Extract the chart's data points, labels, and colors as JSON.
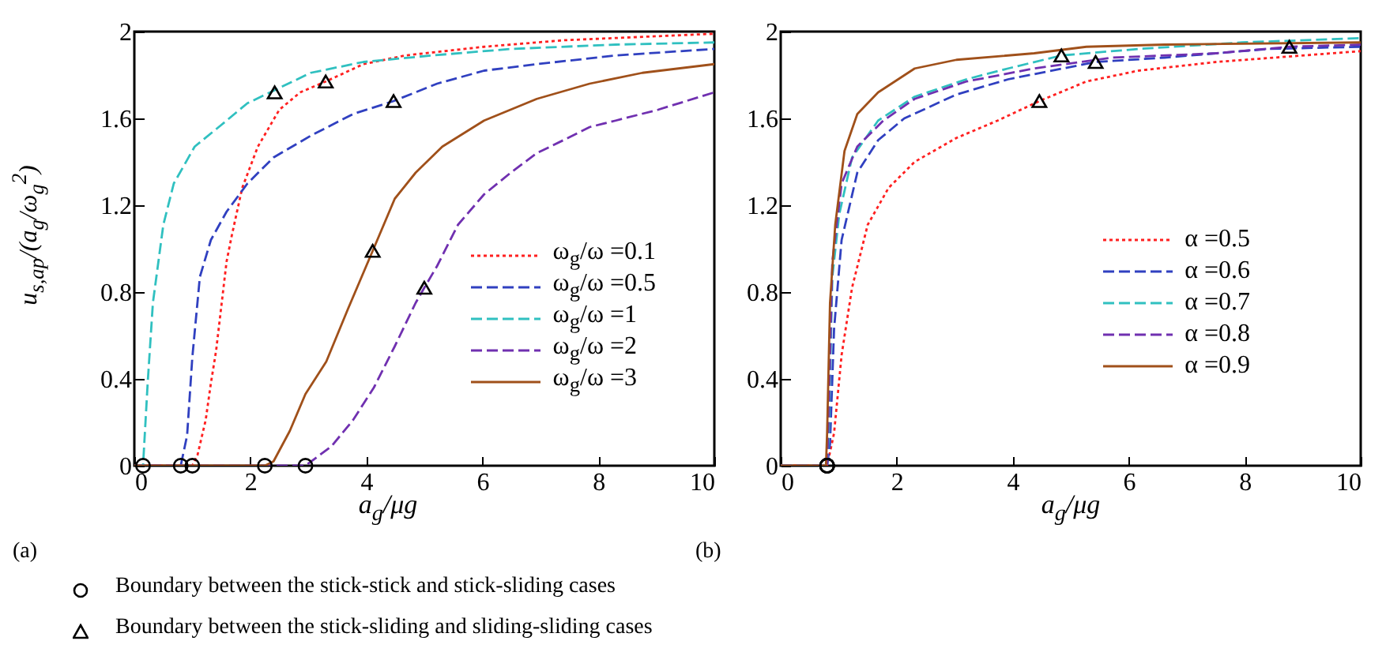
{
  "chart_data": [
    {
      "type": "line",
      "xlabel": "a$_{g}$/μg",
      "ylabel": "u$_{s,ap}$/(a$_{g}$/ω$_{g}$$^{2}$)",
      "xlim": [
        0,
        10
      ],
      "xticks": [
        0,
        2,
        4,
        6,
        8,
        10
      ],
      "ylim": [
        0,
        2
      ],
      "yticks": [
        0,
        0.4,
        0.8,
        1.2,
        1.6,
        2
      ],
      "legend": "bottom right",
      "annotations": [
        "(a)",
        "Boundary between the stick-stick and stick-sliding cases",
        "Boundary between the stick-sliding and sliding-sliding cases"
      ],
      "series": [
        {
          "name": "ω$_{g}$/ω =0.1",
          "color": "#ff2020",
          "line_style": "dotted",
          "x": [
            0,
            1.0,
            1.09,
            1.23,
            1.32,
            1.41,
            1.59,
            1.68,
            1.86,
            2.13,
            2.5,
            2.86,
            3.3,
            3.95,
            4.67,
            6.03,
            7.4,
            10
          ],
          "values": [
            0,
            0,
            0.05,
            0.21,
            0.38,
            0.53,
            0.94,
            1.06,
            1.28,
            1.47,
            1.64,
            1.72,
            1.77,
            1.85,
            1.89,
            1.93,
            1.96,
            1.99
          ]
        },
        {
          "name": "ω$_{g}$/ω =0.5",
          "color": "#3040c0",
          "line_style": "dashed",
          "x": [
            0,
            0.8,
            0.91,
            1.0,
            1.13,
            1.32,
            1.59,
            1.95,
            2.4,
            3.04,
            3.77,
            4.47,
            5.22,
            6.03,
            6.94,
            8.3,
            10
          ],
          "values": [
            0,
            0,
            0.14,
            0.5,
            0.87,
            1.04,
            1.17,
            1.3,
            1.42,
            1.52,
            1.62,
            1.68,
            1.76,
            1.82,
            1.85,
            1.89,
            1.92
          ]
        },
        {
          "name": "ω$_{g}$/ω =1",
          "color": "#30c0c0",
          "line_style": "dashed",
          "x": [
            0,
            0.15,
            0.23,
            0.32,
            0.5,
            0.68,
            1.04,
            1.5,
            1.95,
            2.42,
            3.04,
            3.95,
            5.13,
            6.49,
            8.3,
            10
          ],
          "values": [
            0,
            0,
            0.38,
            0.75,
            1.11,
            1.3,
            1.47,
            1.57,
            1.67,
            1.73,
            1.81,
            1.86,
            1.89,
            1.92,
            1.94,
            1.95
          ]
        },
        {
          "name": "ω$_{g}$/ω =2",
          "color": "#7030b0",
          "line_style": "dashed",
          "x": [
            0,
            2.95,
            3.4,
            3.77,
            4.13,
            4.49,
            4.85,
            5.0,
            5.22,
            5.58,
            6.03,
            6.49,
            6.94,
            7.4,
            7.85,
            8.3,
            9.03,
            10
          ],
          "values": [
            0,
            0,
            0.09,
            0.21,
            0.36,
            0.55,
            0.75,
            0.82,
            0.92,
            1.11,
            1.25,
            1.35,
            1.44,
            1.5,
            1.56,
            1.59,
            1.64,
            1.72
          ]
        },
        {
          "name": "ω$_{g}$/ω =3",
          "color": "#a0501a",
          "line_style": "solid",
          "x": [
            0,
            2.25,
            2.4,
            2.68,
            2.95,
            3.31,
            3.68,
            4.11,
            4.49,
            4.85,
            5.31,
            6.03,
            6.94,
            7.85,
            8.76,
            10
          ],
          "values": [
            0,
            0,
            0.02,
            0.16,
            0.33,
            0.48,
            0.72,
            0.99,
            1.23,
            1.35,
            1.47,
            1.59,
            1.69,
            1.76,
            1.81,
            1.85
          ]
        },
        {
          "type": "scatter",
          "marker": "circle",
          "color": "#000000",
          "x": [
            0.15,
            0.8,
            1.0,
            2.25,
            2.95
          ],
          "values": [
            0,
            0,
            0,
            0,
            0
          ]
        },
        {
          "type": "scatter",
          "marker": "triangle",
          "color": "#000000",
          "x": [
            2.42,
            3.3,
            4.47,
            4.11,
            5.0
          ],
          "values": [
            1.72,
            1.77,
            1.68,
            0.99,
            0.82
          ]
        }
      ]
    },
    {
      "type": "line",
      "xlabel": "a$_{g}$/μg",
      "xlim": [
        0,
        10
      ],
      "xticks": [
        0,
        2,
        4,
        6,
        8,
        10
      ],
      "ylim": [
        0,
        2
      ],
      "yticks": [
        0,
        0.4,
        0.8,
        1.2,
        1.6,
        2
      ],
      "legend": "right",
      "annotations": [
        "(b)"
      ],
      "series": [
        {
          "name": "α =0.5",
          "color": "#ff2020",
          "line_style": "dotted",
          "x": [
            0,
            0.8,
            0.92,
            1.05,
            1.23,
            1.5,
            1.86,
            2.31,
            3.03,
            3.74,
            4.46,
            5.27,
            6.17,
            7.51,
            10
          ],
          "values": [
            0,
            0,
            0.15,
            0.51,
            0.82,
            1.11,
            1.28,
            1.4,
            1.51,
            1.59,
            1.68,
            1.77,
            1.82,
            1.86,
            1.91
          ]
        },
        {
          "name": "α =0.6",
          "color": "#3040c0",
          "line_style": "dashed",
          "x": [
            0,
            0.8,
            0.85,
            0.92,
            1.05,
            1.32,
            1.68,
            2.13,
            3.03,
            3.92,
            5.43,
            6.62,
            8.41,
            10
          ],
          "values": [
            0,
            0,
            0.1,
            0.63,
            1.04,
            1.35,
            1.5,
            1.6,
            1.71,
            1.78,
            1.86,
            1.88,
            1.92,
            1.93
          ]
        },
        {
          "name": "α =0.7",
          "color": "#30c0c0",
          "line_style": "dashed",
          "x": [
            0,
            0.8,
            0.83,
            0.89,
            1.01,
            1.23,
            1.68,
            2.31,
            3.2,
            3.92,
            4.84,
            6.17,
            7.96,
            10
          ],
          "values": [
            0,
            0,
            0.15,
            0.87,
            1.16,
            1.42,
            1.59,
            1.7,
            1.78,
            1.83,
            1.89,
            1.92,
            1.95,
            1.97
          ]
        },
        {
          "name": "α =0.8",
          "color": "#7030b0",
          "line_style": "dashed",
          "x": [
            0,
            0.8,
            0.83,
            0.89,
            1.05,
            1.32,
            1.77,
            2.31,
            3.2,
            4.37,
            5.72,
            7.51,
            8.77,
            10
          ],
          "values": [
            0,
            0,
            0.27,
            0.94,
            1.3,
            1.47,
            1.59,
            1.69,
            1.77,
            1.83,
            1.88,
            1.9,
            1.93,
            1.94
          ]
        },
        {
          "name": "α =0.9",
          "color": "#a0501a",
          "line_style": "solid",
          "x": [
            0,
            0.78,
            0.8,
            0.85,
            0.94,
            1.1,
            1.32,
            1.68,
            2.31,
            3.03,
            4.37,
            5.27,
            6.62,
            10
          ],
          "values": [
            0,
            0,
            0.15,
            0.75,
            1.11,
            1.45,
            1.62,
            1.72,
            1.83,
            1.87,
            1.9,
            1.93,
            1.94,
            1.95
          ]
        },
        {
          "type": "scatter",
          "marker": "circle",
          "color": "#000000",
          "x": [
            0.8,
            0.8,
            0.8,
            0.8,
            0.8
          ],
          "values": [
            0,
            0,
            0,
            0,
            0
          ]
        },
        {
          "type": "scatter",
          "marker": "triangle",
          "color": "#000000",
          "x": [
            4.46,
            4.84,
            5.43,
            8.77
          ],
          "values": [
            1.68,
            1.89,
            1.86,
            1.93
          ]
        }
      ]
    }
  ]
}
